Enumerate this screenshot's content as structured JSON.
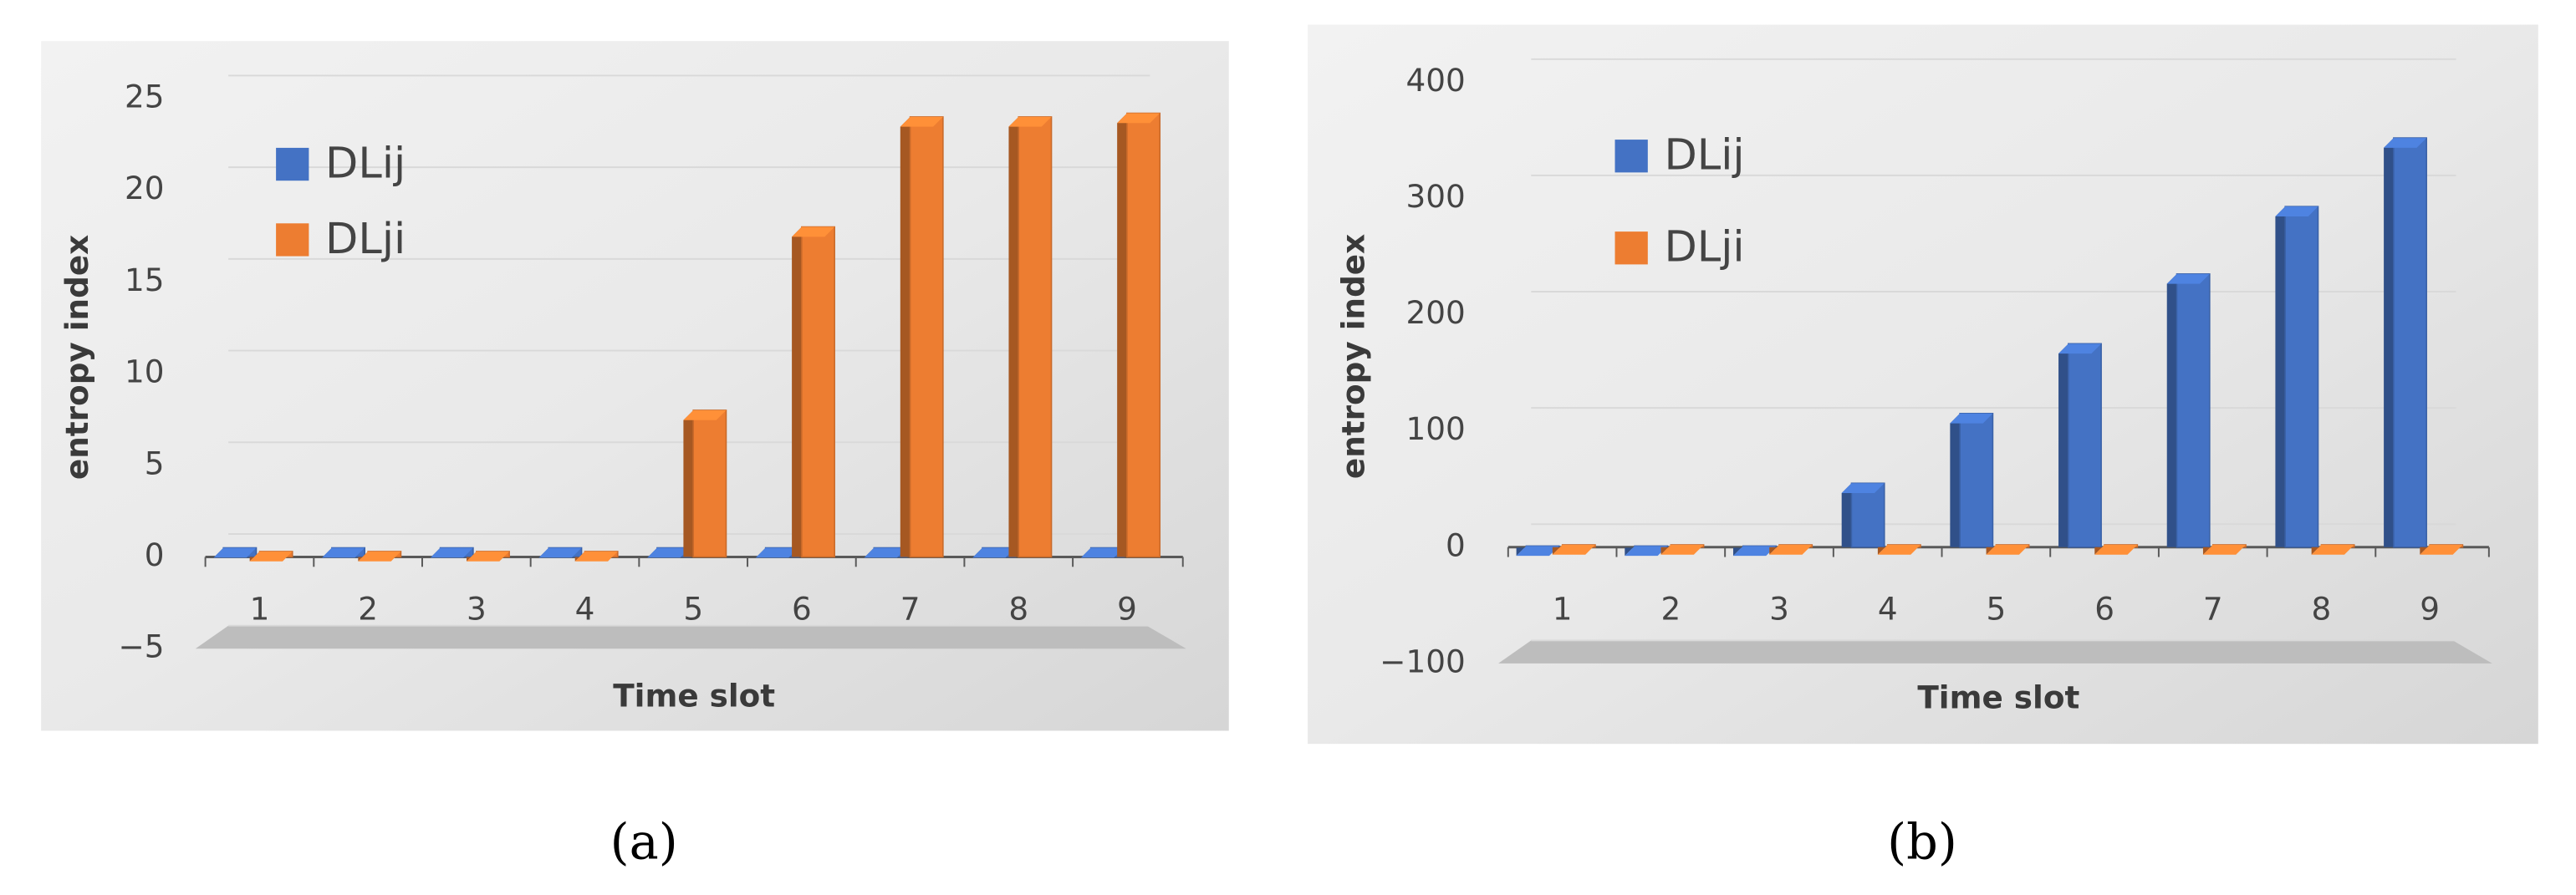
{
  "chart_data": [
    {
      "type": "bar",
      "label": "(a)",
      "ylabel": "entropy index",
      "xlabel": "Time slot",
      "categories": [
        "1",
        "2",
        "3",
        "4",
        "5",
        "6",
        "7",
        "8",
        "9"
      ],
      "series": [
        {
          "name": "DLij",
          "color": "#4472c4",
          "values": [
            0.5,
            0.5,
            0.5,
            0.5,
            0.5,
            0.5,
            0.5,
            0.5,
            0.5
          ]
        },
        {
          "name": "DLji",
          "color": "#ed7d31",
          "values": [
            0.3,
            0.3,
            0.3,
            0.3,
            8,
            18,
            24,
            24,
            24.2
          ]
        }
      ],
      "ylim": [
        -5,
        25
      ],
      "yticks": [
        {
          "value": -5,
          "label": "−5"
        },
        0,
        5,
        10,
        15,
        20,
        25
      ],
      "grid": true
    },
    {
      "type": "bar",
      "label": "(b)",
      "ylabel": "entropy index",
      "xlabel": "Time slot",
      "categories": [
        "1",
        "2",
        "3",
        "4",
        "5",
        "6",
        "7",
        "8",
        "9"
      ],
      "series": [
        {
          "name": "DLij",
          "color": "#4472c4",
          "values": [
            1,
            1,
            1,
            55,
            115,
            175,
            235,
            293,
            352
          ]
        },
        {
          "name": "DLji",
          "color": "#ed7d31",
          "values": [
            2,
            2,
            2,
            2,
            2,
            2,
            2,
            2,
            2
          ]
        }
      ],
      "ylim": [
        -100,
        400
      ],
      "yticks": [
        {
          "value": -100,
          "label": "−100"
        },
        0,
        100,
        200,
        300,
        400
      ],
      "grid": true
    }
  ]
}
